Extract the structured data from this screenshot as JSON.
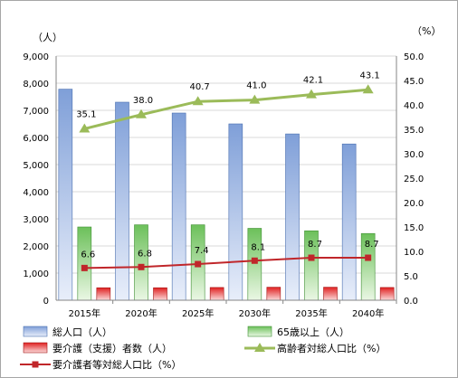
{
  "chart_data": {
    "type": "bar",
    "categories": [
      "2015年",
      "2020年",
      "2025年",
      "2030年",
      "2035年",
      "2040年"
    ],
    "y_left": {
      "unit_label": "（人）",
      "range": [
        0,
        9000
      ],
      "ticks": [
        "0",
        "1,000",
        "2,000",
        "3,000",
        "4,000",
        "5,000",
        "6,000",
        "7,000",
        "8,000",
        "9,000"
      ]
    },
    "y_right": {
      "unit_label": "（%）",
      "range": [
        0,
        50
      ],
      "ticks": [
        "0.0",
        "5.0",
        "10.0",
        "15.0",
        "20.0",
        "25.0",
        "30.0",
        "35.0",
        "40.0",
        "45.0",
        "50.0"
      ]
    },
    "grid": true,
    "legend_placement": "bottom",
    "series": [
      {
        "name": "総人口（人）",
        "kind": "bar",
        "axis": "left",
        "color": "#7f9fd8",
        "values": [
          7780,
          7300,
          6900,
          6500,
          6130,
          5760
        ]
      },
      {
        "name": "65歳以上（人）",
        "kind": "bar",
        "axis": "left",
        "color": "#70c060",
        "values": [
          2700,
          2780,
          2780,
          2650,
          2560,
          2460
        ]
      },
      {
        "name": "要介護（支援）者数（人）",
        "kind": "bar",
        "axis": "left",
        "color": "#e02020",
        "values": [
          460,
          460,
          470,
          480,
          480,
          470
        ]
      },
      {
        "name": "高齢者対総人口比（%）",
        "kind": "line",
        "axis": "right",
        "color": "#9bbb59",
        "marker": "triangle",
        "values": [
          35.1,
          38.0,
          40.7,
          41.0,
          42.1,
          43.1
        ],
        "labels": [
          "35.1",
          "38.0",
          "40.7",
          "41.0",
          "42.1",
          "43.1"
        ]
      },
      {
        "name": "要介護者等対総人口比（%）",
        "kind": "line",
        "axis": "right",
        "color": "#c0262a",
        "marker": "square",
        "values": [
          6.6,
          6.8,
          7.4,
          8.1,
          8.7,
          8.7
        ],
        "labels": [
          "6.6",
          "6.8",
          "7.4",
          "8.1",
          "8.7",
          "8.7"
        ]
      }
    ]
  }
}
